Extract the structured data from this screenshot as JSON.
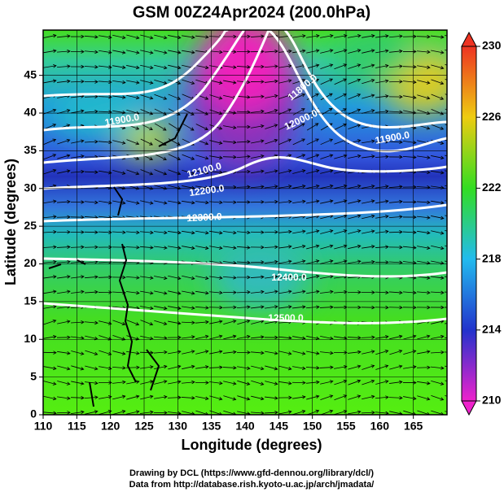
{
  "title": "GSM 00Z24Apr2024 (200.0hPa)",
  "x_axis": {
    "label": "Longitude (degrees)",
    "lim": [
      110,
      170
    ],
    "ticks": [
      110,
      115,
      120,
      125,
      130,
      135,
      140,
      145,
      150,
      155,
      160,
      165
    ]
  },
  "y_axis": {
    "label": "Latitude  (degrees)",
    "lim": [
      0,
      51
    ],
    "ticks": [
      0,
      5,
      10,
      15,
      20,
      25,
      30,
      35,
      40,
      45
    ]
  },
  "colorbar": {
    "lim": [
      210,
      230
    ],
    "ticks": [
      210,
      214,
      218,
      222,
      226,
      230
    ]
  },
  "contour_labels": [
    "11900.0",
    "11800.0",
    "12000.0",
    "11900.0",
    "12100.0",
    "12200.0",
    "12300.0",
    "12400.0",
    "12500.0"
  ],
  "footer": [
    "Drawing by DCL (https://www.gfd-dennou.org/library/dcl/)",
    "Data from http://database.rish.kyoto-u.ac.jp/arch/jmadata/"
  ]
}
